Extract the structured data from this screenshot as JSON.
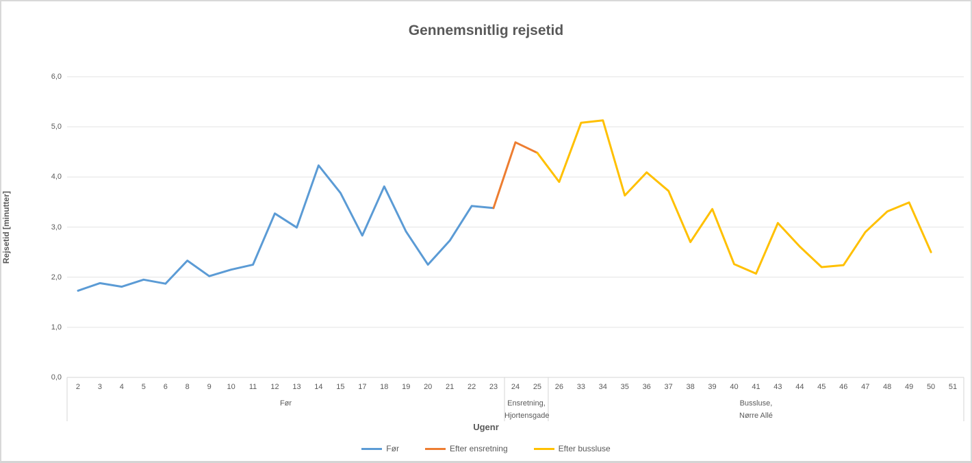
{
  "chart_data": {
    "type": "line",
    "title": "Gennemsnitlig rejsetid",
    "xlabel": "Ugenr",
    "ylabel": "Rejsetid [minutter]",
    "ylim": [
      0,
      6
    ],
    "grid": true,
    "legend_position": "bottom",
    "ytick_labels": [
      "0,0",
      "1,0",
      "2,0",
      "3,0",
      "4,0",
      "5,0",
      "6,0"
    ],
    "categories": [
      "2",
      "3",
      "4",
      "5",
      "6",
      "8",
      "9",
      "10",
      "11",
      "12",
      "13",
      "14",
      "15",
      "17",
      "18",
      "19",
      "20",
      "21",
      "22",
      "23",
      "24",
      "25",
      "26",
      "33",
      "34",
      "35",
      "36",
      "37",
      "38",
      "39",
      "40",
      "41",
      "43",
      "44",
      "45",
      "46",
      "47",
      "48",
      "49",
      "50",
      "51"
    ],
    "series": [
      {
        "name": "Før",
        "color": "#5B9BD5",
        "start_index": 0,
        "values": [
          1.73,
          1.88,
          1.81,
          1.95,
          1.87,
          2.33,
          2.02,
          2.15,
          2.25,
          3.27,
          2.99,
          4.23,
          3.68,
          2.83,
          3.81,
          2.91,
          2.25,
          2.73,
          3.42,
          3.38
        ]
      },
      {
        "name": "Efter ensretning",
        "color": "#ED7D31",
        "start_index": 19,
        "values": [
          3.38,
          4.69,
          4.48
        ]
      },
      {
        "name": "Efter bussluse",
        "color": "#FFC000",
        "start_index": 21,
        "values": [
          4.48,
          3.9,
          5.08,
          5.13,
          3.63,
          4.09,
          3.72,
          2.7,
          3.36,
          2.26,
          2.07,
          3.08,
          2.61,
          2.2,
          2.24,
          2.9,
          3.31,
          3.49,
          2.5
        ]
      }
    ],
    "axis_groups": [
      {
        "label_lines": [
          "Før"
        ],
        "from": 0,
        "to": 19
      },
      {
        "label_lines": [
          "Ensretning,",
          "Hjortensgade"
        ],
        "from": 20,
        "to": 21
      },
      {
        "label_lines": [
          "Bussluse,",
          "Nørre Allé"
        ],
        "from": 22,
        "to": 40
      }
    ],
    "colors": {
      "text": "#595959",
      "gridline": "#e3e3e3",
      "axis_line": "#d5d5d5",
      "background": "#ffffff"
    }
  }
}
